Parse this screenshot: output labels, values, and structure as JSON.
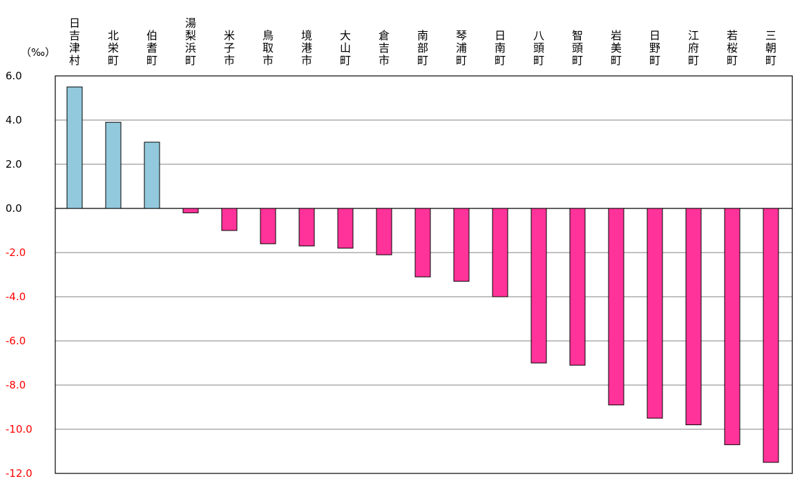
{
  "chart_data": {
    "type": "bar",
    "unit_label": "（‰）",
    "categories": [
      "日吉津村",
      "北栄町",
      "伯耆町",
      "湯梨浜町",
      "米子市",
      "鳥取市",
      "境港市",
      "大山町",
      "倉吉市",
      "南部町",
      "琴浦町",
      "日南町",
      "八頭町",
      "智頭町",
      "岩美町",
      "日野町",
      "江府町",
      "若桜町",
      "三朝町"
    ],
    "values": [
      5.5,
      3.9,
      3.0,
      -0.2,
      -1.0,
      -1.6,
      -1.7,
      -1.8,
      -2.1,
      -3.1,
      -3.3,
      -4.0,
      -7.0,
      -7.1,
      -8.9,
      -9.5,
      -9.8,
      -10.7,
      -11.5
    ],
    "ylim": [
      -12.0,
      6.0
    ],
    "y_ticks": [
      "6.0",
      "4.0",
      "2.0",
      "0.0",
      "-2.0",
      "-4.0",
      "-6.0",
      "-8.0",
      "-10.0",
      "-12.0"
    ],
    "y_tick_values": [
      6,
      4,
      2,
      0,
      -2,
      -4,
      -6,
      -8,
      -10,
      -12
    ],
    "grid": true,
    "colors": {
      "positive": "#92c9dc",
      "negative": "#ff3399",
      "positive_tick": "#000000",
      "negative_tick": "#ff0000",
      "grid": "#808080",
      "bar_outline": "#000000"
    }
  }
}
